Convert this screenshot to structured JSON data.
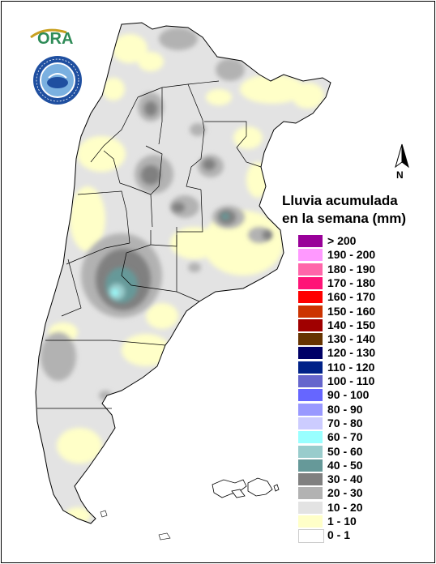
{
  "map": {
    "north_label": "N",
    "legend": {
      "title_line1": "Lluvia acumulada",
      "title_line2": "en la semana (mm)",
      "classes": [
        {
          "label": "> 200",
          "color": "#990099"
        },
        {
          "label": "190 - 200",
          "color": "#FF99FF"
        },
        {
          "label": "180 - 190",
          "color": "#FF66AA"
        },
        {
          "label": "170 - 180",
          "color": "#FF1477"
        },
        {
          "label": "160 - 170",
          "color": "#FF0000"
        },
        {
          "label": "150 - 160",
          "color": "#CC3300"
        },
        {
          "label": "140 - 150",
          "color": "#A00000"
        },
        {
          "label": "130 - 140",
          "color": "#663300"
        },
        {
          "label": "120 - 130",
          "color": "#000066"
        },
        {
          "label": "110 - 120",
          "color": "#002288"
        },
        {
          "label": "100 - 110",
          "color": "#6666CC"
        },
        {
          "label": "90 - 100",
          "color": "#6666FF"
        },
        {
          "label": "80 - 90",
          "color": "#9999FF"
        },
        {
          "label": "70 - 80",
          "color": "#CCCCFF"
        },
        {
          "label": "60 - 70",
          "color": "#99FFFF"
        },
        {
          "label": "50 - 60",
          "color": "#99CCCC"
        },
        {
          "label": "40 - 50",
          "color": "#669999"
        },
        {
          "label": "30 - 40",
          "color": "#808080"
        },
        {
          "label": "20 - 30",
          "color": "#B2B2B2"
        },
        {
          "label": "10 - 20",
          "color": "#E3E3E3"
        },
        {
          "label": "1 - 10",
          "color": "#FFFFC8"
        },
        {
          "label": "0 - 1",
          "color": "#FFFFFF"
        }
      ]
    },
    "logos": {
      "ora": "ORA",
      "smn": "SMN"
    }
  }
}
